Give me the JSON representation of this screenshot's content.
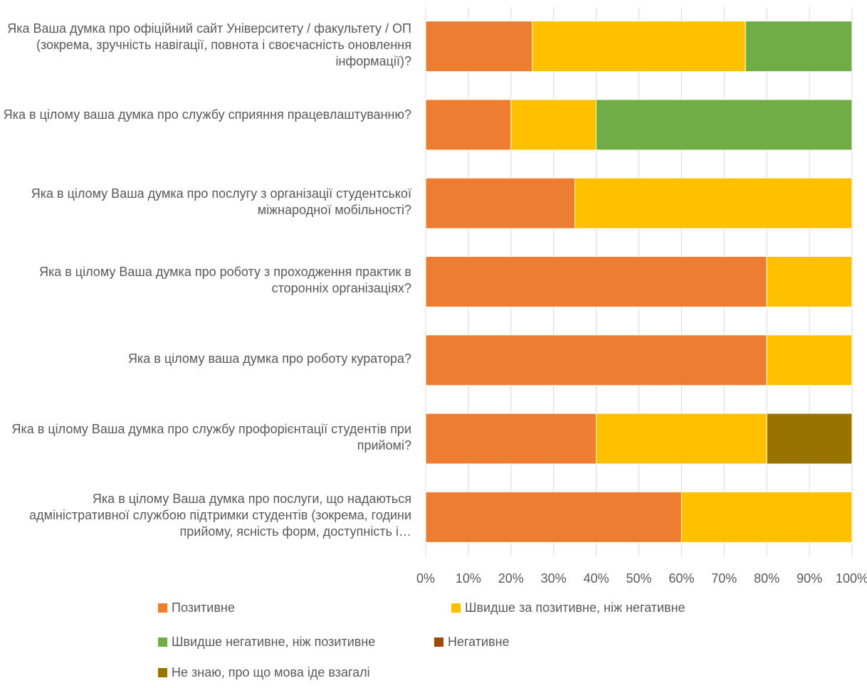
{
  "chart_data": {
    "type": "bar",
    "orientation": "horizontal",
    "stacked": "percent",
    "title": "",
    "xlabel": "",
    "ylabel": "",
    "xlim": [
      0,
      100
    ],
    "x_ticks": [
      "0%",
      "10%",
      "20%",
      "30%",
      "40%",
      "50%",
      "60%",
      "70%",
      "80%",
      "90%",
      "100%"
    ],
    "grid": "vertical",
    "legend_position": "bottom",
    "categories": [
      "Яка Ваша думка про офіційний сайт Університету / факультету / ОП (зокрема, зручність навігації, повнота і своєчасність оновлення інформації)?",
      "Яка в цілому ваша думка про службу сприяння працевлаштуванню?",
      "Яка в цілому Ваша думка про послугу з організації студентської міжнародної мобільності?",
      "Яка в цілому Ваша думка про роботу з проходження практик в сторонніх організаціях?",
      "Яка в цілому ваша думка про роботу куратора?",
      "Яка в цілому Ваша думка про службу профорієнтації студентів при прийомі?",
      "Яка в цілому Ваша думка про послуги, що надаються адміністративної службою підтримки студентів (зокрема, години прийому, ясність форм, доступність і…"
    ],
    "series": [
      {
        "name": "Позитивне",
        "color": "#ED7D31",
        "values": [
          25,
          20,
          35,
          80,
          80,
          40,
          60
        ]
      },
      {
        "name": "Швидше за позитивне, ніж негативне",
        "color": "#FFC000",
        "values": [
          50,
          20,
          65,
          20,
          20,
          40,
          40
        ]
      },
      {
        "name": "Швидше негативне, ніж позитивне",
        "color": "#70AD47",
        "values": [
          25,
          60,
          0,
          0,
          0,
          0,
          0
        ]
      },
      {
        "name": "Негативне",
        "color": "#9E480E",
        "values": [
          0,
          0,
          0,
          0,
          0,
          0,
          0
        ]
      },
      {
        "name": "Не знаю, про що мова іде взагалі",
        "color": "#997300",
        "values": [
          0,
          0,
          0,
          0,
          0,
          20,
          0
        ]
      }
    ]
  }
}
